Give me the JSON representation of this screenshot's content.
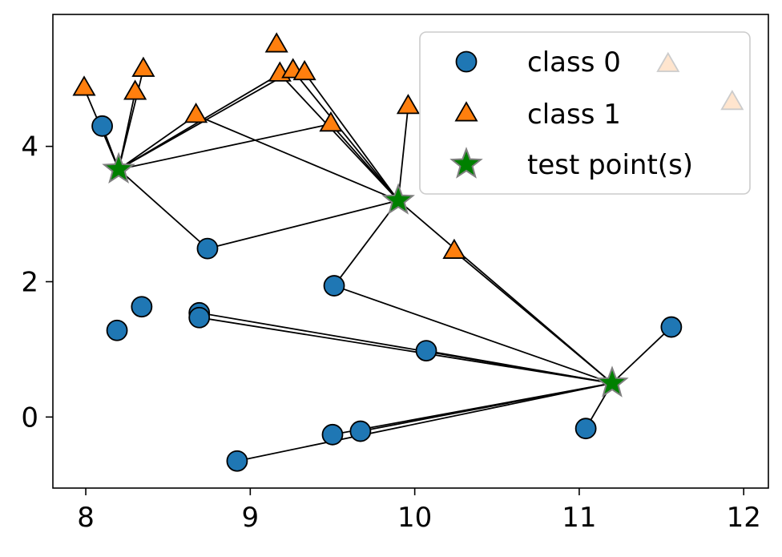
{
  "chart_data": {
    "type": "scatter",
    "title": "",
    "xlabel": "",
    "ylabel": "",
    "xlim": [
      7.8,
      12.15
    ],
    "ylim": [
      -1.05,
      5.95
    ],
    "xticks": [
      8,
      9,
      10,
      11,
      12
    ],
    "yticks": [
      0,
      2,
      4
    ],
    "grid": false,
    "legend_position": "top-right",
    "colors": {
      "class0": "#1f77b4",
      "class1": "#ff7f0e",
      "test": "#008000",
      "test_edge": "#808080",
      "line": "#000000"
    },
    "series": [
      {
        "name": "class 0",
        "marker": "circle",
        "points": [
          [
            8.1,
            4.3
          ],
          [
            8.74,
            2.49
          ],
          [
            9.51,
            1.94
          ],
          [
            8.34,
            1.63
          ],
          [
            8.19,
            1.28
          ],
          [
            8.69,
            1.54
          ],
          [
            8.69,
            1.47
          ],
          [
            10.07,
            0.98
          ],
          [
            11.56,
            1.33
          ],
          [
            11.04,
            -0.17
          ],
          [
            9.67,
            -0.21
          ],
          [
            9.5,
            -0.26
          ],
          [
            8.92,
            -0.65
          ]
        ]
      },
      {
        "name": "class 1",
        "marker": "triangle",
        "points": [
          [
            7.99,
            4.86
          ],
          [
            8.3,
            4.8
          ],
          [
            8.35,
            5.14
          ],
          [
            8.67,
            4.46
          ],
          [
            9.16,
            5.5
          ],
          [
            9.18,
            5.07
          ],
          [
            9.26,
            5.12
          ],
          [
            9.33,
            5.09
          ],
          [
            9.49,
            4.33
          ],
          [
            9.96,
            4.59
          ],
          [
            10.24,
            2.45
          ],
          [
            11.54,
            5.21
          ],
          [
            11.93,
            4.65
          ]
        ]
      },
      {
        "name": "test point(s)",
        "marker": "star",
        "points": [
          [
            8.2,
            3.66
          ],
          [
            9.9,
            3.2
          ],
          [
            11.2,
            0.5
          ]
        ]
      }
    ],
    "neighbor_links": [
      {
        "test": [
          8.2,
          3.66
        ],
        "neighbors": [
          [
            7.99,
            4.86
          ],
          [
            8.3,
            4.8
          ],
          [
            8.35,
            5.14
          ],
          [
            8.1,
            4.3
          ],
          [
            8.67,
            4.46
          ],
          [
            9.18,
            5.07
          ],
          [
            9.26,
            5.12
          ],
          [
            9.49,
            4.33
          ],
          [
            8.74,
            2.49
          ]
        ]
      },
      {
        "test": [
          9.9,
          3.2
        ],
        "neighbors": [
          [
            8.67,
            4.46
          ],
          [
            9.18,
            5.07
          ],
          [
            9.26,
            5.12
          ],
          [
            9.33,
            5.09
          ],
          [
            9.49,
            4.33
          ],
          [
            9.96,
            4.59
          ],
          [
            9.51,
            1.94
          ],
          [
            8.74,
            2.49
          ]
        ]
      },
      {
        "test": [
          11.2,
          0.5
        ],
        "neighbors": [
          [
            9.9,
            3.2
          ],
          [
            10.24,
            2.45
          ],
          [
            11.56,
            1.33
          ],
          [
            11.04,
            -0.17
          ],
          [
            10.07,
            0.98
          ],
          [
            9.51,
            1.94
          ],
          [
            8.69,
            1.54
          ],
          [
            8.69,
            1.47
          ],
          [
            9.67,
            -0.21
          ],
          [
            9.5,
            -0.26
          ],
          [
            8.92,
            -0.65
          ]
        ]
      }
    ],
    "legend": [
      {
        "label": "class 0",
        "marker": "circle"
      },
      {
        "label": "class 1",
        "marker": "triangle"
      },
      {
        "label": "test point(s)",
        "marker": "star"
      }
    ]
  }
}
